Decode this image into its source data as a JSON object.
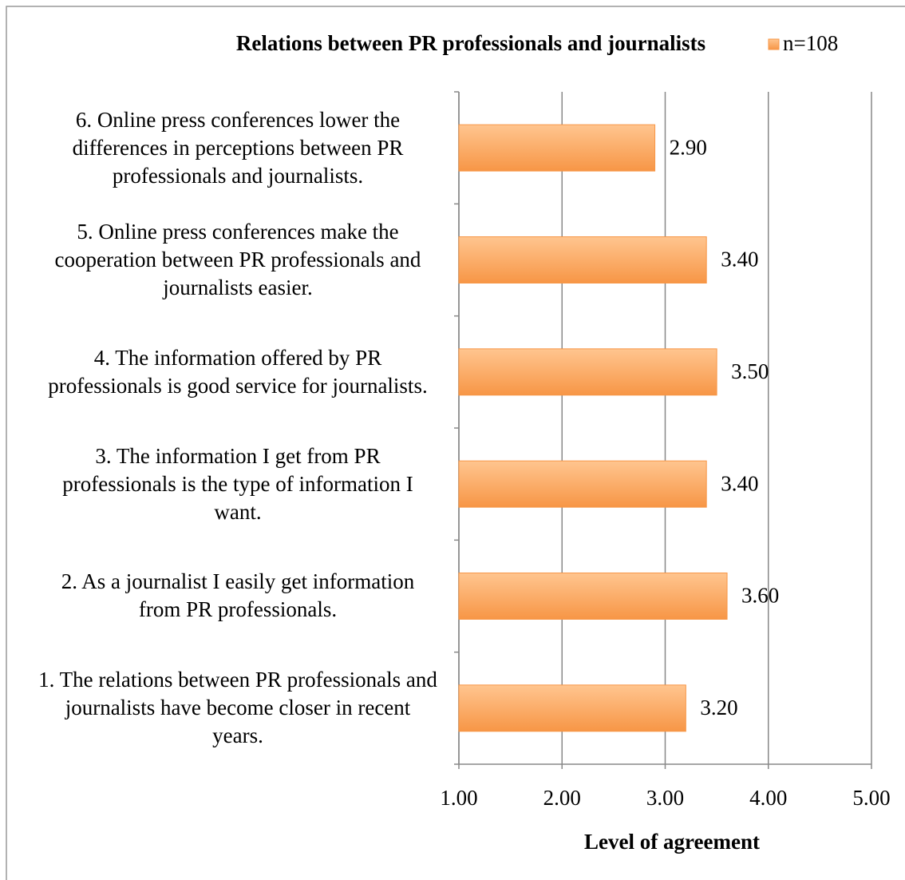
{
  "chart_data": {
    "type": "barh",
    "title": "Relations between PR professionals and journalists",
    "xlabel": "Level of agreement",
    "categories": [
      "1. The relations between PR professionals and journalists have become closer in recent years.",
      "2. As a journalist I easily get information from PR professionals.",
      "3. The information I get from PR professionals is the type of information I want.",
      "4. The information offered by PR professionals is good service for journalists.",
      "5. Online press conferences make the cooperation between PR professionals and journalists easier.",
      "6. Online press conferences lower the differences in perceptions between PR professionals and journalists."
    ],
    "series": [
      {
        "name": "n=108",
        "color": "#f79646",
        "values": [
          3.2,
          3.6,
          3.4,
          3.5,
          3.4,
          2.9
        ],
        "value_labels": [
          "3.20",
          "3.60",
          "3.40",
          "3.50",
          "3.40",
          "2.90"
        ]
      }
    ],
    "xlim": [
      1,
      5
    ],
    "xticks": [
      {
        "value": 1,
        "label": "1.00"
      },
      {
        "value": 2,
        "label": "2.00"
      },
      {
        "value": 3,
        "label": "3.00"
      },
      {
        "value": 4,
        "label": "4.00"
      },
      {
        "value": 5,
        "label": "5.00"
      }
    ],
    "grid": true,
    "legend": "top-right"
  }
}
